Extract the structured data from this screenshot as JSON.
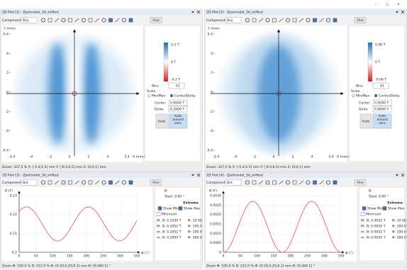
{
  "window": {
    "controls": [
      "–",
      "▢",
      "✕"
    ]
  },
  "panels": [
    {
      "type": "2d-plot",
      "title": "2D Plot [1] - Zpolmodel_3d_shifted",
      "component_label": "Component",
      "component": "Bxy",
      "fine": "Fine",
      "y_axis_label": "Y (mm)",
      "x_axis_label": "X (mm)",
      "yticks": [
        "6.4",
        "4",
        "2",
        "0",
        "-2",
        "-4",
        "-6.4"
      ],
      "xticks": [
        "-5.4",
        "-4",
        "-2",
        "0",
        "2",
        "4",
        "5.4"
      ],
      "colorbar": [
        "0.2 T",
        "0 T",
        "-0.2 T"
      ],
      "bins_label": "Bins",
      "bins": "61",
      "scale": "Scale",
      "minmax": "Min/Max",
      "centerdelta": "Center/Delta",
      "center_label": "Center",
      "center": "0.0000 T",
      "delta_label": "Delta",
      "delta": "0.2000 T",
      "auto": "Auto",
      "auto_zero": "Auto around zero",
      "status": "Zoom: 337.5 %   X: [-5.4;5.5] mm Y: [-6.5;6.5] mm Z: [0;0.1] mm"
    },
    {
      "type": "2d-plot",
      "title": "2D Plot [2] - Zpolmodel_3d_shifted",
      "component_label": "Component",
      "component": "Bxy",
      "fine": "Fine",
      "y_axis_label": "Y (mm)",
      "x_axis_label": "X (mm)",
      "yticks": [
        "6.4",
        "4",
        "2",
        "0",
        "-2",
        "-4",
        "-6.4"
      ],
      "xticks": [
        "-5.4",
        "-4",
        "-2",
        "0",
        "2",
        "4",
        "5.4"
      ],
      "colorbar": [
        "0.06 T",
        "0 T",
        "-0.06 T"
      ],
      "bins_label": "Bins",
      "bins": "61",
      "scale": "Scale",
      "minmax": "Min/Max",
      "centerdelta": "Center/Delta",
      "center_label": "Center",
      "center": "0.0000 T",
      "delta_label": "Delta",
      "delta": "0.0600 T",
      "auto": "Auto",
      "auto_zero": "Auto around zero",
      "status": "Zoom: 337.5 %   X: [-5.4;5.5] mm Y: [-6.5;6.5] mm Z: [0;0.1] mm"
    },
    {
      "type": "1d-plot",
      "title": "1D Plot [3] - Zpolmodel_3d_shifted",
      "component_label": "Component",
      "component": "Bxt",
      "fine": "Fine",
      "y_axis_label": "B (T)",
      "x_axis_label": "Φ (°)",
      "yticks": [
        "0.23",
        "0.22",
        "0.21",
        "0.2"
      ],
      "xticks": [
        "0",
        "50",
        "100",
        "150",
        "200",
        "250",
        "300",
        "350"
      ],
      "side": {
        "b": "B:",
        "start_label": "Start",
        "start": "0.00 °",
        "extrema": "Extrema",
        "show_min": "Show Min",
        "show_max": "Show Max",
        "minimum": "Minimum",
        "rows": [
          [
            "M:",
            "B: 0.2100 T",
            "Φ: 10.00"
          ],
          [
            "M:",
            "B: 0.2052 T",
            "Φ: 100.0"
          ],
          [
            "m:",
            "B: 0.2052 T",
            "Φ: 190.0"
          ],
          [
            "m:",
            "B: 0.2094 T",
            "Φ: 280.0"
          ]
        ]
      },
      "status": "Zoom Φ: 100.0 % B: 223.0 %   Φ: [0.25;0.25;0.1] mm Φ: [0;360.1] °"
    },
    {
      "type": "1d-plot",
      "title": "1D Plot [4] - Zpolmodel_3d_shifted",
      "component_label": "Component",
      "component": "Bnt",
      "fine": "Fine",
      "y_axis_label": "B (T)",
      "x_axis_label": "Φ (°)",
      "yticks": [
        "0.0030",
        "0.0025",
        "0.0020",
        "0.0015",
        "0.0010",
        "0.0005",
        "0"
      ],
      "xticks": [
        "0",
        "50",
        "100",
        "150",
        "200",
        "250",
        "300",
        "350"
      ],
      "side": {
        "b": "B:",
        "start_label": "Start",
        "start": "0.00 °",
        "extrema": "Extrema",
        "show_min": "Show Min",
        "show_max": "Show Max",
        "minimum": "Minimum",
        "rows": [
          [
            "M:",
            "B: 0.0032 T",
            "Φ: 10.00"
          ],
          [
            "M:",
            "B: 0.0030 T",
            "Φ: 100.0"
          ],
          [
            "m:",
            "B: 0.0032 T",
            "Φ: 190.0"
          ],
          [
            "m:",
            "B: 0.0030 T",
            "Φ: 280.0"
          ]
        ]
      },
      "status": "Zoom Φ: 100.0 % B: 223.0 %   Φ: [0.25;0.25;0.1] mm Φ: [0;360.1] °"
    }
  ]
}
